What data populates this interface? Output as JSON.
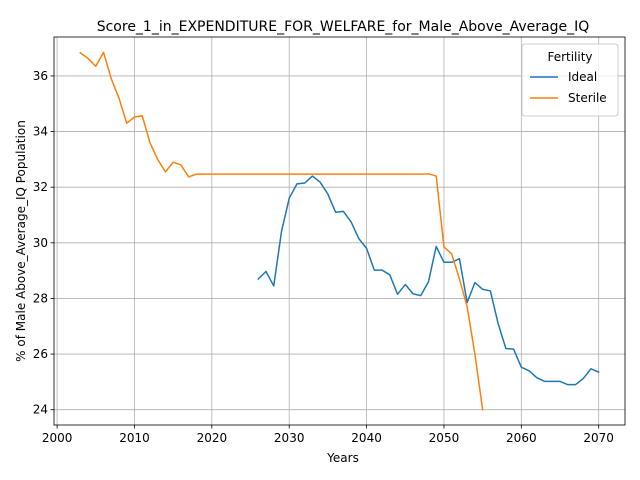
{
  "chart_data": {
    "type": "line",
    "title": "Score_1_in_EXPENDITURE_FOR_WELFARE_for_Male_Above_Average_IQ",
    "xlabel": "Years",
    "ylabel": "% of Male Above_Average_IQ Population",
    "xlim": [
      1999.6,
      2073.4
    ],
    "ylim": [
      23.45,
      37.4
    ],
    "xticks": [
      2000,
      2010,
      2020,
      2030,
      2040,
      2050,
      2060,
      2070
    ],
    "yticks": [
      24,
      26,
      28,
      30,
      32,
      34,
      36
    ],
    "grid": true,
    "legend": {
      "title": "Fertility",
      "placement": "top-right"
    },
    "series": [
      {
        "name": "Ideal",
        "color": "#1f77b4",
        "x": [
          2026,
          2027,
          2028,
          2029,
          2030,
          2031,
          2032,
          2033,
          2034,
          2035,
          2036,
          2037,
          2038,
          2039,
          2040,
          2041,
          2042,
          2043,
          2044,
          2045,
          2046,
          2047,
          2048,
          2049,
          2050,
          2051,
          2052,
          2053,
          2054,
          2055,
          2056,
          2057,
          2058,
          2059,
          2060,
          2061,
          2062,
          2063,
          2064,
          2065,
          2066,
          2067,
          2068,
          2069,
          2070
        ],
        "y": [
          28.7,
          28.97,
          28.45,
          30.4,
          31.6,
          32.12,
          32.15,
          32.4,
          32.18,
          31.75,
          31.1,
          31.13,
          30.75,
          30.15,
          29.8,
          29.02,
          29.02,
          28.85,
          28.15,
          28.5,
          28.17,
          28.1,
          28.6,
          29.87,
          29.3,
          29.3,
          29.43,
          27.85,
          28.57,
          28.33,
          28.27,
          27.1,
          26.2,
          26.18,
          25.53,
          25.4,
          25.15,
          25.02,
          25.02,
          25.02,
          24.9,
          24.9,
          25.12,
          25.47,
          25.35
        ]
      },
      {
        "name": "Sterile",
        "color": "#ff7f0e",
        "x": [
          2003,
          2004,
          2005,
          2006,
          2007,
          2008,
          2009,
          2010,
          2011,
          2012,
          2013,
          2014,
          2015,
          2016,
          2017,
          2018,
          2019,
          2020,
          2021,
          2022,
          2023,
          2024,
          2025,
          2026,
          2027,
          2028,
          2029,
          2030,
          2031,
          2032,
          2033,
          2034,
          2035,
          2036,
          2037,
          2038,
          2039,
          2040,
          2041,
          2042,
          2043,
          2044,
          2045,
          2046,
          2047,
          2048,
          2049,
          2050,
          2051,
          2052,
          2053,
          2054,
          2055
        ],
        "y": [
          36.83,
          36.63,
          36.35,
          36.85,
          35.9,
          35.2,
          34.3,
          34.52,
          34.57,
          33.6,
          33.0,
          32.55,
          32.9,
          32.8,
          32.37,
          32.47,
          32.47,
          32.47,
          32.47,
          32.47,
          32.47,
          32.47,
          32.47,
          32.47,
          32.47,
          32.47,
          32.47,
          32.47,
          32.47,
          32.47,
          32.47,
          32.47,
          32.47,
          32.47,
          32.47,
          32.47,
          32.47,
          32.47,
          32.47,
          32.47,
          32.47,
          32.47,
          32.47,
          32.47,
          32.47,
          32.48,
          32.4,
          29.85,
          29.6,
          28.7,
          27.7,
          26.0,
          24.0
        ]
      }
    ]
  }
}
